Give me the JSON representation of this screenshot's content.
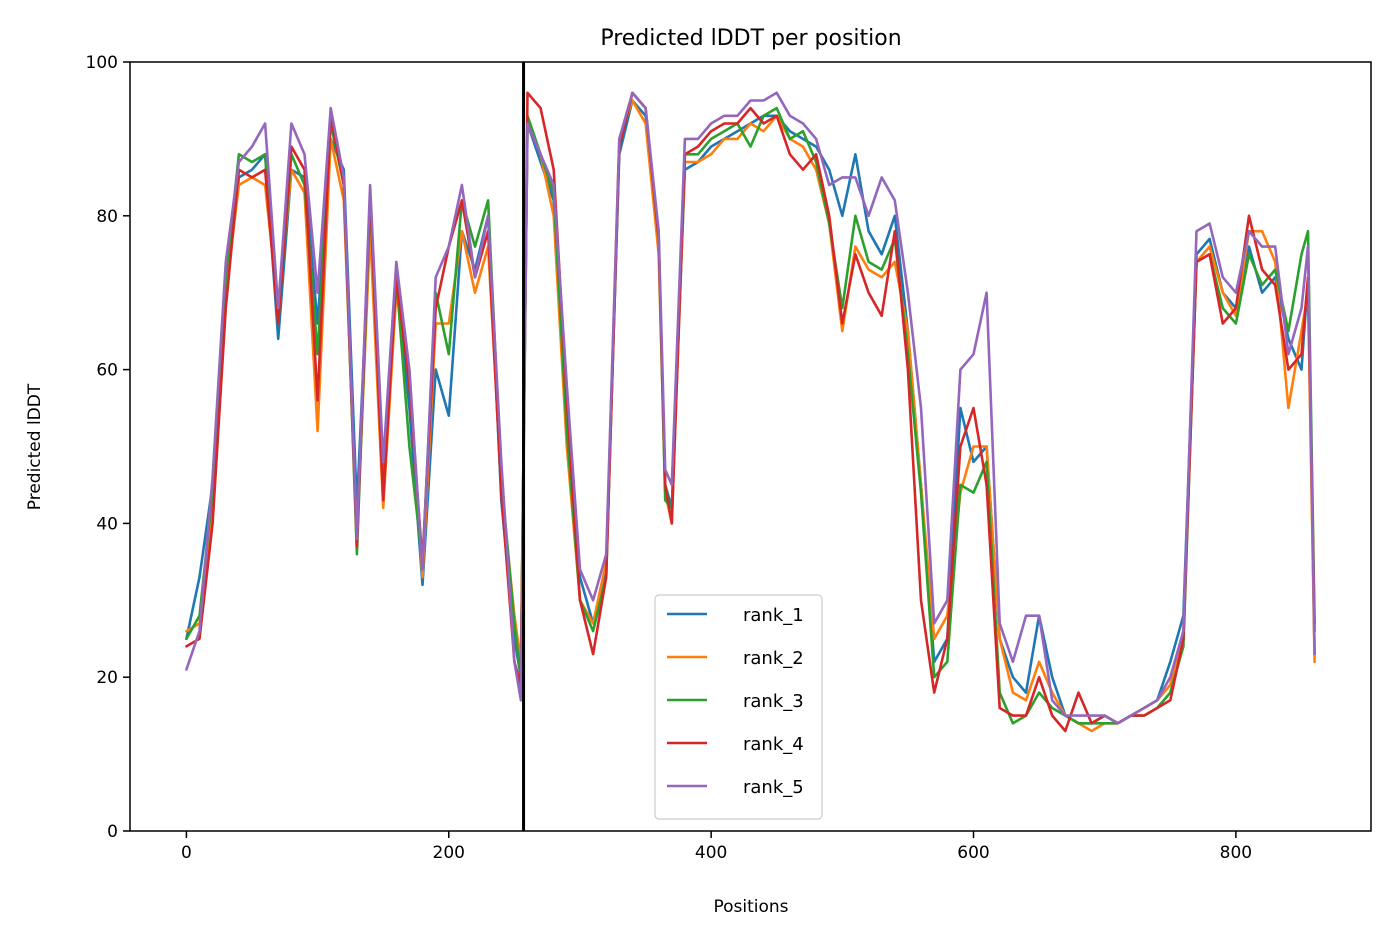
{
  "chart_data": {
    "type": "line",
    "title": "Predicted lDDT per position",
    "xlabel": "Positions",
    "ylabel": "Predicted lDDT",
    "xlim": [
      -43,
      903
    ],
    "ylim": [
      0,
      100
    ],
    "xticks": [
      0,
      200,
      400,
      600,
      800
    ],
    "yticks": [
      0,
      20,
      40,
      60,
      80,
      100
    ],
    "grid": false,
    "legend_position": "bottom-center",
    "vline": 257,
    "x": [
      0,
      10,
      20,
      30,
      40,
      50,
      60,
      70,
      80,
      90,
      100,
      110,
      120,
      130,
      140,
      150,
      160,
      170,
      180,
      190,
      200,
      210,
      220,
      230,
      240,
      250,
      255,
      260,
      270,
      280,
      290,
      300,
      310,
      320,
      330,
      340,
      350,
      360,
      365,
      370,
      380,
      390,
      400,
      410,
      420,
      430,
      440,
      450,
      460,
      470,
      480,
      490,
      500,
      510,
      520,
      530,
      540,
      550,
      560,
      570,
      580,
      590,
      600,
      610,
      620,
      630,
      640,
      650,
      660,
      670,
      680,
      690,
      700,
      710,
      720,
      730,
      740,
      750,
      760,
      770,
      780,
      790,
      800,
      810,
      820,
      830,
      840,
      850,
      855,
      860
    ],
    "series": [
      {
        "name": "rank_1",
        "color": "#1f77b4",
        "values": [
          25,
          33,
          45,
          70,
          85,
          86,
          88,
          64,
          86,
          85,
          66,
          90,
          86,
          42,
          80,
          45,
          72,
          55,
          32,
          60,
          54,
          78,
          73,
          80,
          43,
          25,
          20,
          92,
          87,
          82,
          55,
          33,
          27,
          34,
          88,
          95,
          93,
          76,
          45,
          42,
          86,
          87,
          89,
          90,
          91,
          92,
          93,
          93,
          91,
          90,
          89,
          86,
          80,
          88,
          78,
          75,
          80,
          65,
          45,
          22,
          25,
          55,
          48,
          50,
          25,
          20,
          18,
          28,
          20,
          15,
          14,
          14,
          15,
          14,
          15,
          16,
          17,
          22,
          28,
          75,
          77,
          70,
          68,
          76,
          70,
          72,
          64,
          60,
          72,
          23
        ]
      },
      {
        "name": "rank_2",
        "color": "#ff7f0e",
        "values": [
          26,
          27,
          42,
          70,
          84,
          85,
          84,
          68,
          86,
          83,
          52,
          90,
          82,
          38,
          78,
          42,
          70,
          60,
          33,
          66,
          66,
          78,
          70,
          76,
          45,
          28,
          22,
          92,
          88,
          80,
          50,
          30,
          27,
          35,
          90,
          95,
          92,
          75,
          44,
          40,
          87,
          87,
          88,
          90,
          90,
          92,
          91,
          93,
          90,
          89,
          86,
          79,
          65,
          76,
          73,
          72,
          74,
          65,
          45,
          25,
          28,
          44,
          50,
          50,
          25,
          18,
          17,
          22,
          18,
          15,
          14,
          13,
          14,
          14,
          15,
          16,
          17,
          19,
          26,
          74,
          76,
          70,
          67,
          78,
          78,
          74,
          55,
          65,
          70,
          22
        ]
      },
      {
        "name": "rank_3",
        "color": "#2ca02c",
        "values": [
          25,
          28,
          44,
          72,
          88,
          87,
          88,
          66,
          88,
          84,
          62,
          92,
          84,
          36,
          82,
          45,
          72,
          50,
          35,
          70,
          62,
          82,
          76,
          82,
          46,
          27,
          20,
          93,
          88,
          83,
          52,
          30,
          26,
          33,
          89,
          96,
          94,
          77,
          43,
          42,
          88,
          88,
          90,
          91,
          92,
          89,
          93,
          94,
          90,
          91,
          87,
          79,
          68,
          80,
          74,
          73,
          77,
          62,
          44,
          20,
          22,
          45,
          44,
          48,
          18,
          14,
          15,
          18,
          16,
          15,
          14,
          14,
          14,
          14,
          15,
          15,
          16,
          18,
          24,
          74,
          75,
          68,
          66,
          75,
          71,
          73,
          65,
          75,
          78,
          27
        ]
      },
      {
        "name": "rank_4",
        "color": "#d62728",
        "values": [
          24,
          25,
          40,
          68,
          86,
          85,
          86,
          66,
          89,
          86,
          56,
          93,
          84,
          37,
          83,
          43,
          72,
          58,
          35,
          68,
          76,
          82,
          72,
          78,
          44,
          22,
          19,
          96,
          94,
          86,
          56,
          30,
          23,
          33,
          89,
          96,
          94,
          77,
          45,
          40,
          88,
          89,
          91,
          92,
          92,
          94,
          92,
          93,
          88,
          86,
          88,
          80,
          66,
          75,
          70,
          67,
          78,
          60,
          30,
          18,
          25,
          50,
          55,
          45,
          16,
          15,
          15,
          20,
          15,
          13,
          18,
          14,
          15,
          14,
          15,
          15,
          16,
          17,
          25,
          74,
          75,
          66,
          68,
          80,
          73,
          71,
          60,
          62,
          72,
          26
        ]
      },
      {
        "name": "rank_5",
        "color": "#9467bd",
        "values": [
          21,
          26,
          46,
          74,
          87,
          89,
          92,
          68,
          92,
          88,
          70,
          94,
          85,
          38,
          84,
          48,
          74,
          60,
          34,
          72,
          76,
          84,
          72,
          80,
          48,
          22,
          17,
          92,
          88,
          84,
          58,
          34,
          30,
          36,
          90,
          96,
          94,
          78,
          47,
          45,
          90,
          90,
          92,
          93,
          93,
          95,
          95,
          96,
          93,
          92,
          90,
          84,
          85,
          85,
          80,
          85,
          82,
          70,
          55,
          27,
          30,
          60,
          62,
          70,
          27,
          22,
          28,
          28,
          17,
          15,
          15,
          15,
          15,
          14,
          15,
          16,
          17,
          20,
          26,
          78,
          79,
          72,
          70,
          78,
          76,
          76,
          62,
          68,
          76,
          23
        ]
      }
    ]
  }
}
